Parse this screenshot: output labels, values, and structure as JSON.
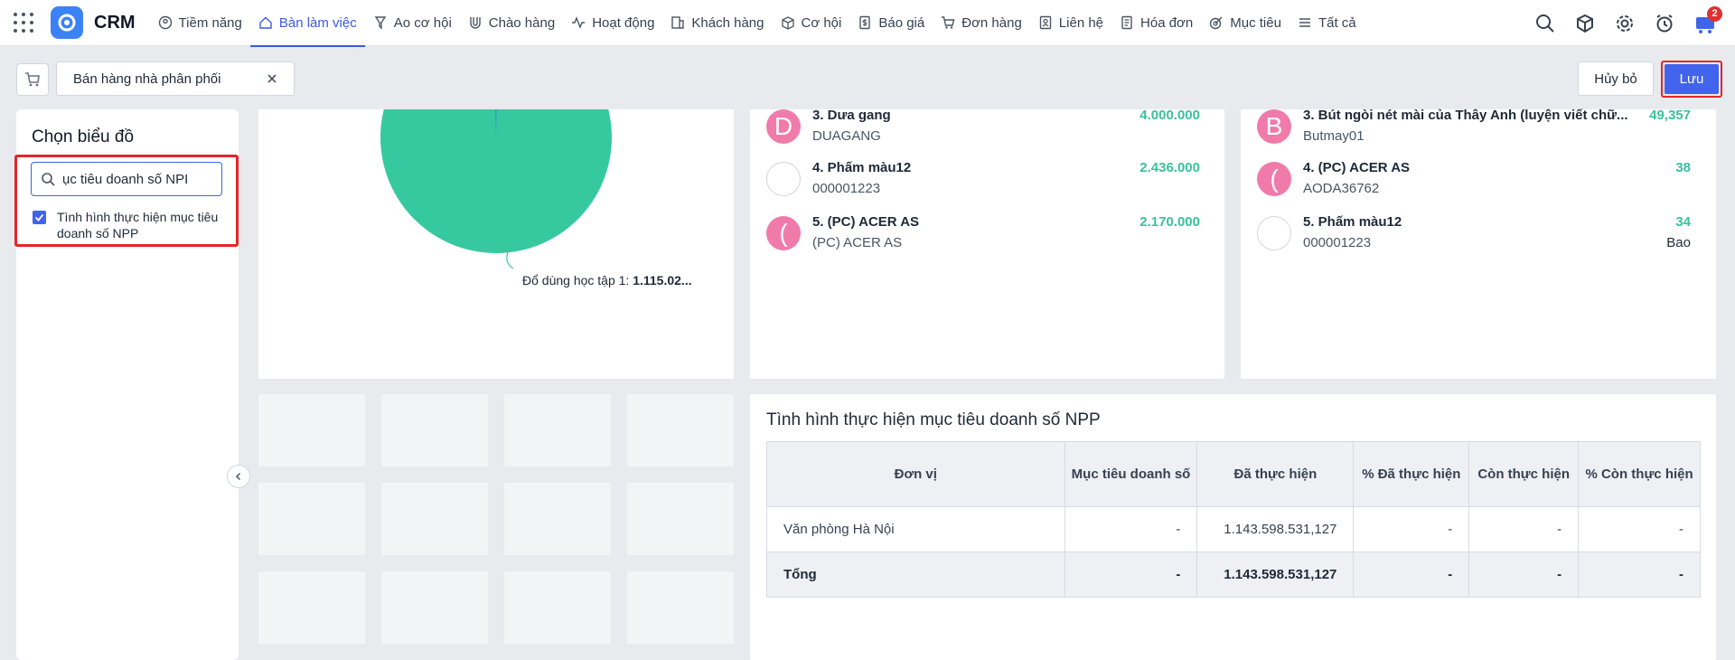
{
  "nav": {
    "brand": "CRM",
    "items": [
      {
        "label": "Tiềm năng",
        "icon": "user-circle-icon"
      },
      {
        "label": "Bàn làm việc",
        "icon": "home-icon",
        "active": true
      },
      {
        "label": "Ao cơ hội",
        "icon": "funnel-icon"
      },
      {
        "label": "Chào hàng",
        "icon": "magnet-icon"
      },
      {
        "label": "Hoạt động",
        "icon": "activity-icon"
      },
      {
        "label": "Khách hàng",
        "icon": "building-icon"
      },
      {
        "label": "Cơ hội",
        "icon": "box-icon"
      },
      {
        "label": "Báo giá",
        "icon": "dollar-doc-icon"
      },
      {
        "label": "Đơn hàng",
        "icon": "cart-icon"
      },
      {
        "label": "Liên hệ",
        "icon": "contact-icon"
      },
      {
        "label": "Hóa đơn",
        "icon": "invoice-icon"
      },
      {
        "label": "Mục tiêu",
        "icon": "target-icon"
      },
      {
        "label": "Tất cả",
        "icon": "menu-icon"
      }
    ],
    "cart_badge": "2"
  },
  "toolbar": {
    "tab_label": "Bán hàng nhà phân phối",
    "cancel_label": "Hủy bỏ",
    "save_label": "Lưu"
  },
  "left_panel": {
    "title": "Chọn biểu đồ",
    "search_value": "ục tiêu doanh số NPI",
    "option_label": "Tình hình thực hiện mục tiêu doanh số NPP",
    "option_checked": true
  },
  "pie": {
    "callout": "Đổ dùng học tập 1: ",
    "callout_value": "1.115.02..."
  },
  "ranking_left": [
    {
      "avatar": "D",
      "name": "3. Dưa gang",
      "code": "DUAGANG",
      "value": "4.000.000"
    },
    {
      "avatar": "",
      "name": "4. Phấm màu12",
      "code": "000001223",
      "value": "2.436.000"
    },
    {
      "avatar": "(",
      "name": "5. (PC) ACER AS",
      "code": "(PC) ACER AS",
      "value": "2.170.000"
    }
  ],
  "ranking_right": [
    {
      "avatar": "B",
      "name": "3. Bút ngòi nét mài của Thây Anh (luyện viết chữ...",
      "code": "Butmay01",
      "value": "49,357",
      "unit": ""
    },
    {
      "avatar": "(",
      "name": "4. (PC) ACER AS",
      "code": "AODA36762",
      "value": "38",
      "unit": ""
    },
    {
      "avatar": "",
      "name": "5. Phấm màu12",
      "code": "000001223",
      "value": "34",
      "unit": "Bao"
    }
  ],
  "table": {
    "title": "Tình hình thực hiện mục tiêu doanh số NPP",
    "headers": [
      "Đơn vị",
      "Mục tiêu doanh số",
      "Đã thực hiện",
      "% Đã thực hiện",
      "Còn thực hiện",
      "% Còn thực hiện"
    ],
    "rows": [
      [
        "Văn phòng Hà Nội",
        "-",
        "1.143.598.531,127",
        "-",
        "-",
        "-"
      ]
    ],
    "total": [
      "Tổng",
      "-",
      "1.143.598.531,127",
      "-",
      "-",
      "-"
    ]
  },
  "colors": {
    "accent": "#4263eb",
    "highlight": "#e5252a",
    "pie": "#36c9a0",
    "value_green": "#38c19f",
    "avatar": "#f07bab"
  }
}
